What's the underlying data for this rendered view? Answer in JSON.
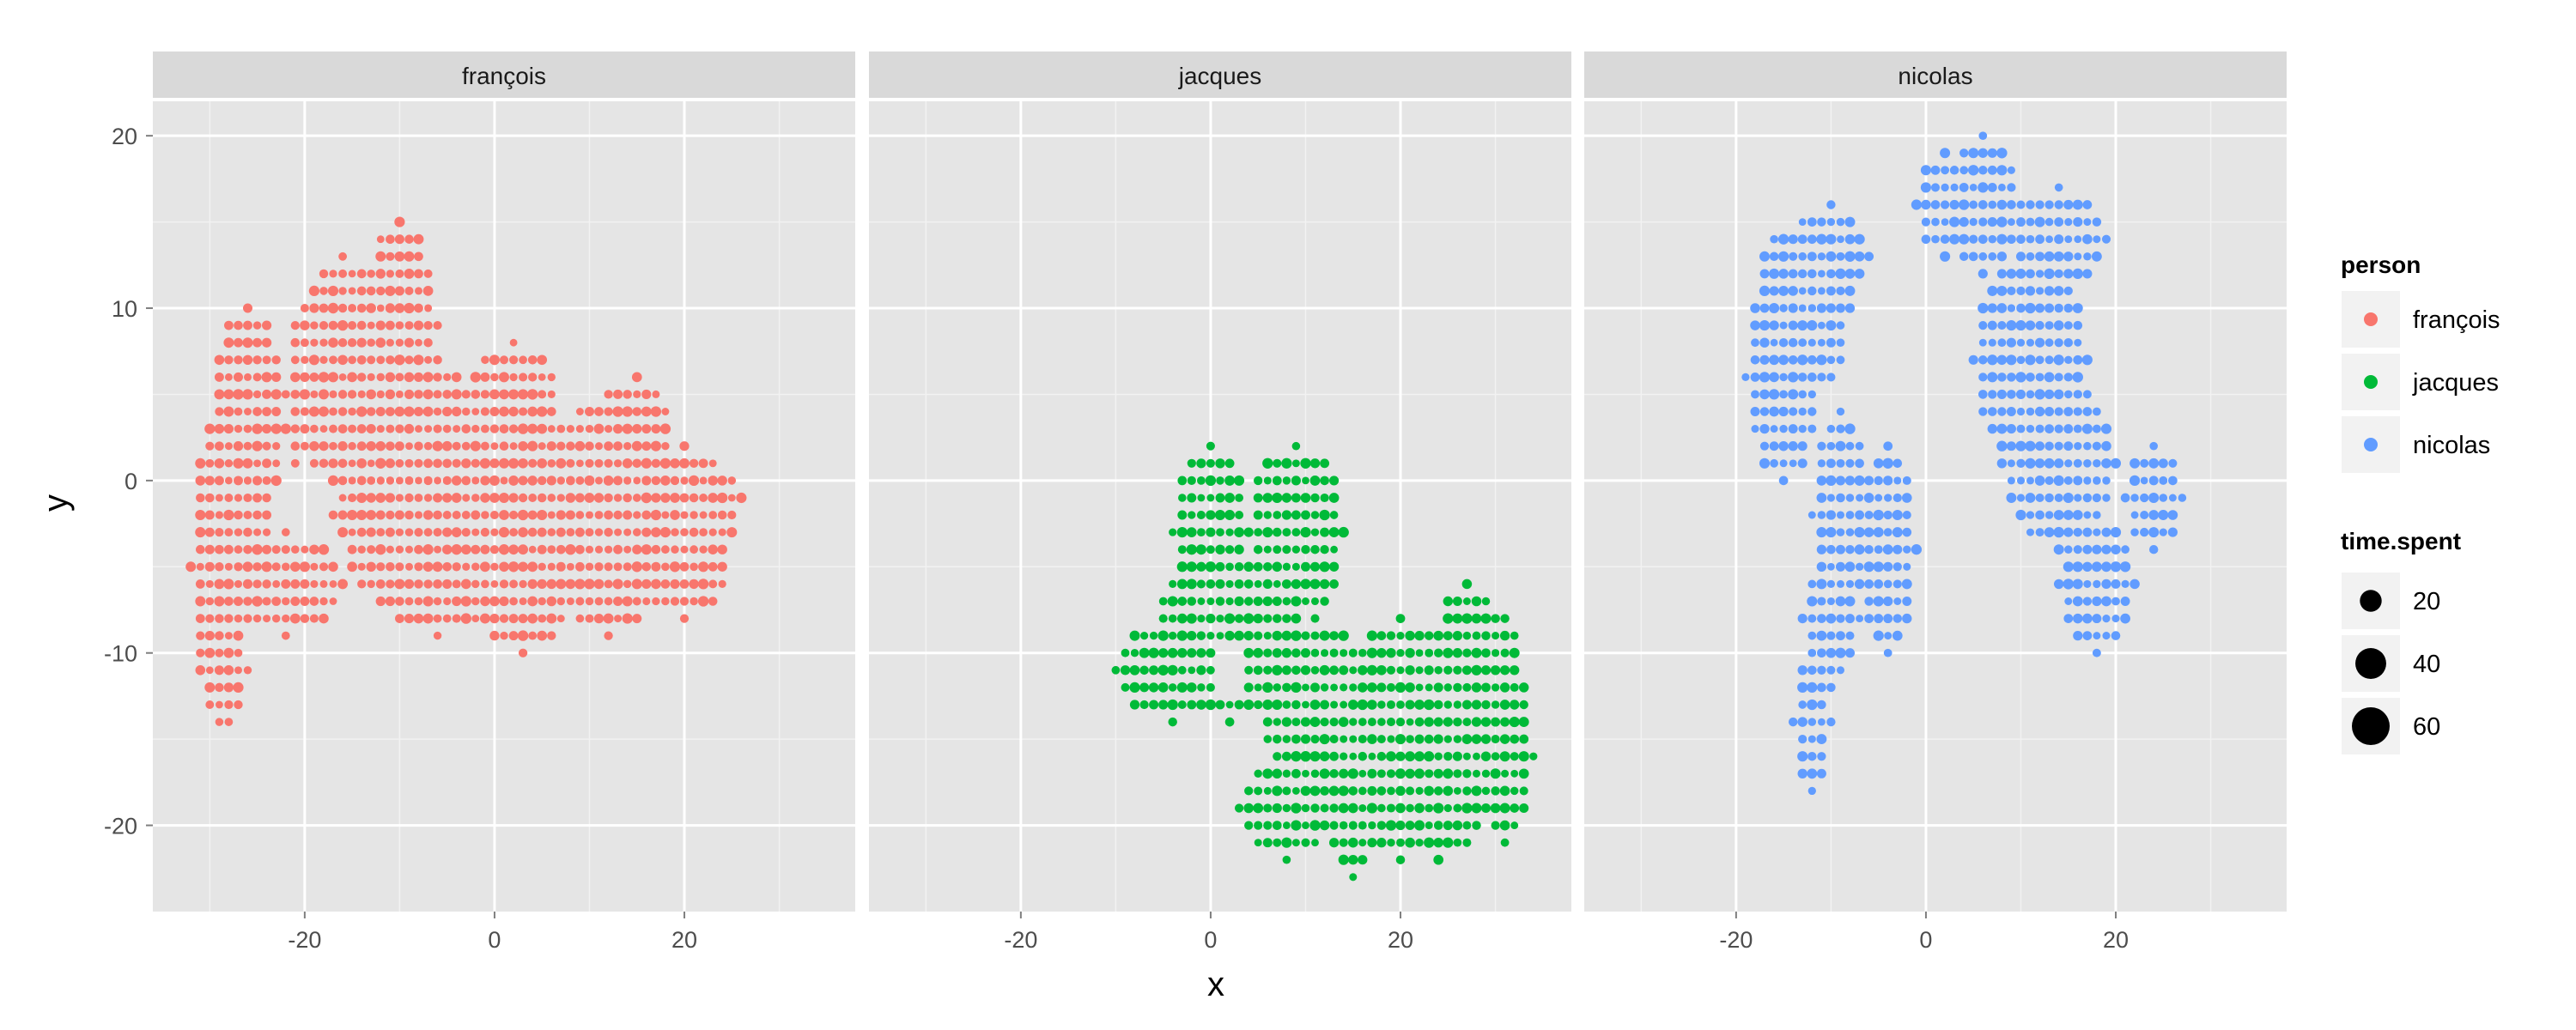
{
  "chart_data": {
    "type": "scatter",
    "facet_by": "person",
    "panels": [
      "françois",
      "jacques",
      "nicolas"
    ],
    "xlabel": "x",
    "ylabel": "y",
    "xlim": [
      -36,
      38
    ],
    "ylim": [
      -25,
      22
    ],
    "x_ticks": [
      -20,
      0,
      20
    ],
    "y_ticks": [
      -20,
      -10,
      0,
      10,
      20
    ],
    "grid": true,
    "point_grid_step": 1,
    "legend_position": "right",
    "color_legend": {
      "title": "person",
      "entries": [
        {
          "label": "françois",
          "color": "#F8766D"
        },
        {
          "label": "jacques",
          "color": "#00BA38"
        },
        {
          "label": "nicolas",
          "color": "#619CFF"
        }
      ]
    },
    "size_legend": {
      "title": "time.spent",
      "entries": [
        {
          "label": "20",
          "value": 20
        },
        {
          "label": "40",
          "value": 40
        },
        {
          "label": "60",
          "value": 60
        }
      ]
    },
    "series": [
      {
        "name": "françois",
        "color": "#F8766D",
        "clusters": [
          {
            "cx": -10,
            "cy": 9,
            "rx": 4,
            "ry": 6
          },
          {
            "cx": -16,
            "cy": 5,
            "rx": 6,
            "ry": 8
          },
          {
            "cx": -9,
            "cy": 0,
            "rx": 8,
            "ry": 8
          },
          {
            "cx": -26,
            "cy": 3,
            "rx": 4,
            "ry": 7
          },
          {
            "cx": -29,
            "cy": -5,
            "rx": 3,
            "ry": 9
          },
          {
            "cx": -28,
            "cy": -11,
            "rx": 2,
            "ry": 3
          },
          {
            "cx": -22,
            "cy": -6,
            "rx": 6,
            "ry": 3
          },
          {
            "cx": -6,
            "cy": -4,
            "rx": 7,
            "ry": 5
          },
          {
            "cx": 2,
            "cy": 3,
            "rx": 5,
            "ry": 5
          },
          {
            "cx": 3,
            "cy": -5,
            "rx": 5,
            "ry": 5
          },
          {
            "cx": 12,
            "cy": -2,
            "rx": 7,
            "ry": 7
          },
          {
            "cx": 15,
            "cy": 1,
            "rx": 4,
            "ry": 5
          },
          {
            "cx": 20,
            "cy": -3,
            "rx": 5,
            "ry": 5
          },
          {
            "cx": 23,
            "cy": -1,
            "rx": 3,
            "ry": 2
          }
        ],
        "holes": [
          {
            "cx": -20,
            "cy": -1,
            "rx": 3,
            "ry": 2
          }
        ]
      },
      {
        "name": "jacques",
        "color": "#00BA38",
        "clusters": [
          {
            "cx": 0,
            "cy": -3,
            "rx": 4,
            "ry": 5
          },
          {
            "cx": 9,
            "cy": -3,
            "rx": 5,
            "ry": 5
          },
          {
            "cx": 2,
            "cy": -9,
            "rx": 8,
            "ry": 5
          },
          {
            "cx": -4,
            "cy": -11,
            "rx": 6,
            "ry": 3
          },
          {
            "cx": 11,
            "cy": -13,
            "rx": 6,
            "ry": 5
          },
          {
            "cx": 8,
            "cy": -19,
            "rx": 5,
            "ry": 3
          },
          {
            "cx": 15,
            "cy": -19,
            "rx": 3,
            "ry": 4
          },
          {
            "cx": 20,
            "cy": -15,
            "rx": 6,
            "ry": 7
          },
          {
            "cx": 24,
            "cy": -18,
            "rx": 5,
            "ry": 4
          },
          {
            "cx": 28,
            "cy": -12,
            "rx": 5,
            "ry": 5
          },
          {
            "cx": 31,
            "cy": -16,
            "rx": 3,
            "ry": 5
          },
          {
            "cx": 27,
            "cy": -9,
            "rx": 3,
            "ry": 3
          }
        ],
        "holes": [
          {
            "cx": 2,
            "cy": -11,
            "rx": 1.5,
            "ry": 1.5
          }
        ]
      },
      {
        "name": "nicolas",
        "color": "#619CFF",
        "clusters": [
          {
            "cx": -13,
            "cy": 10,
            "rx": 5,
            "ry": 5
          },
          {
            "cx": -15,
            "cy": 6,
            "rx": 4,
            "ry": 6
          },
          {
            "cx": -10,
            "cy": 13,
            "rx": 4,
            "ry": 3
          },
          {
            "cx": -9,
            "cy": -2,
            "rx": 3,
            "ry": 6
          },
          {
            "cx": -4,
            "cy": -4,
            "rx": 3,
            "ry": 6
          },
          {
            "cx": -10,
            "cy": -8,
            "rx": 3,
            "ry": 4
          },
          {
            "cx": -12,
            "cy": -14,
            "rx": 2,
            "ry": 4
          },
          {
            "cx": 6,
            "cy": 16,
            "rx": 4,
            "ry": 4
          },
          {
            "cx": 2,
            "cy": 16,
            "rx": 3,
            "ry": 3
          },
          {
            "cx": 14,
            "cy": 14,
            "rx": 5,
            "ry": 3
          },
          {
            "cx": 11,
            "cy": 7,
            "rx": 6,
            "ry": 6
          },
          {
            "cx": 14,
            "cy": 1,
            "rx": 6,
            "ry": 5
          },
          {
            "cx": 18,
            "cy": -6,
            "rx": 4,
            "ry": 4
          },
          {
            "cx": 24,
            "cy": -1,
            "rx": 3,
            "ry": 3
          }
        ],
        "holes": []
      }
    ]
  }
}
